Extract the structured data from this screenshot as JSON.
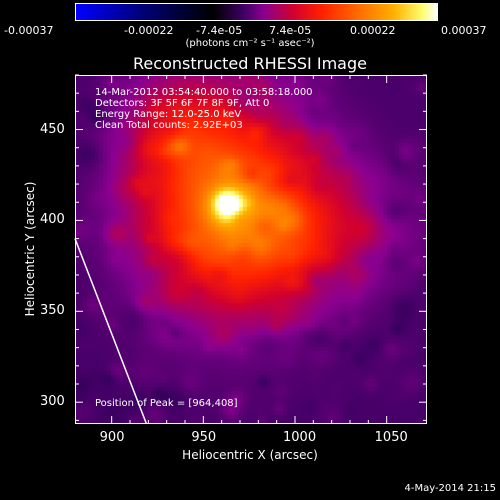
{
  "colorbar": {
    "ticks": [
      "-0.00037",
      "-0.00022",
      "-7.4e-05",
      "7.4e-05",
      "0.00022",
      "0.00037"
    ],
    "units": "(photons cm⁻² s⁻¹ asec⁻²)"
  },
  "chart_data": {
    "type": "heatmap",
    "title": "Reconstructed RHESSI Image",
    "xlabel": "Heliocentric X (arcsec)",
    "ylabel": "Heliocentric Y (arcsec)",
    "xlim": [
      880,
      1072
    ],
    "ylim": [
      288,
      480
    ],
    "x_ticks": [
      "900",
      "950",
      "1000",
      "1050"
    ],
    "y_ticks": [
      "300",
      "350",
      "400",
      "450"
    ],
    "value_range": [
      -0.00037,
      0.00037
    ],
    "colormap_stops": [
      "#0000ff",
      "#000000",
      "#80009a",
      "#ff1800",
      "#ff8800",
      "#ffff80",
      "#ffffff"
    ],
    "annotations": [
      "14-Mar-2012 03:54:40.000 to 03:58:18.000",
      "Detectors: 3F 5F 6F 7F 8F 9F, Att 0",
      "Energy Range: 12.0-25.0 keV",
      "Clean     Total counts: 2.92E+03"
    ],
    "peak_label": "Position of Peak = [964,408]",
    "peak": [
      964,
      408
    ],
    "limb_line": [
      [
        880,
        390
      ],
      [
        919,
        288
      ]
    ]
  },
  "footer": {
    "date": "4-May-2014 21:15"
  }
}
